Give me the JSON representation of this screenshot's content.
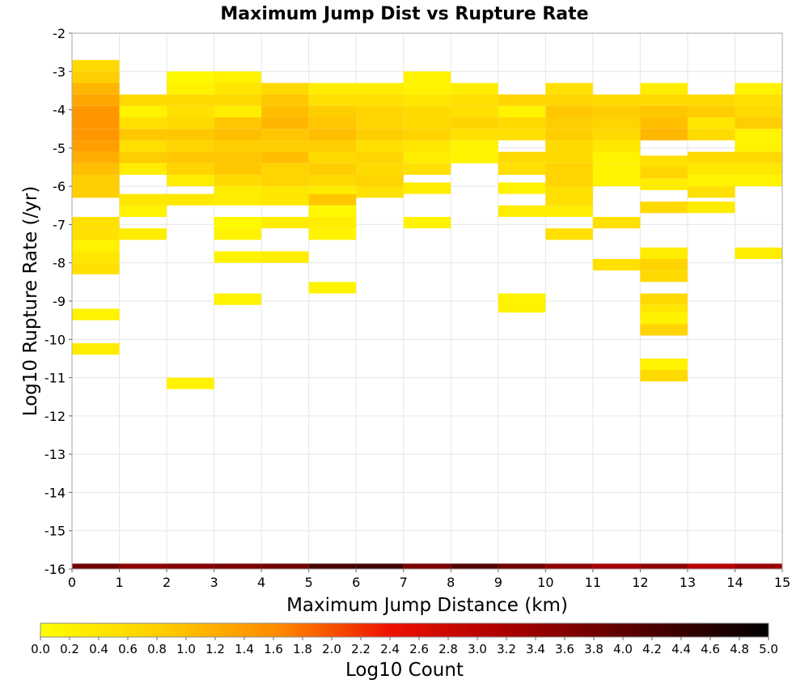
{
  "chart_data": {
    "type": "heatmap",
    "title": "Maximum Jump Dist vs Rupture Rate",
    "xlabel": "Maximum Jump Distance (km)",
    "ylabel": "Log10 Rupture Rate (/yr)",
    "xlim": [
      0,
      15
    ],
    "ylim": [
      -16,
      -2
    ],
    "x_ticks": [
      "0",
      "1",
      "2",
      "3",
      "4",
      "5",
      "6",
      "7",
      "8",
      "9",
      "10",
      "11",
      "12",
      "13",
      "14",
      "15"
    ],
    "y_ticks": [
      "-2",
      "-3",
      "-4",
      "-5",
      "-6",
      "-7",
      "-8",
      "-9",
      "-10",
      "-11",
      "-12",
      "-13",
      "-14",
      "-15",
      "-16"
    ],
    "x_bin_width": 1,
    "y_bin_height": 0.3,
    "grid": true,
    "colorbar": {
      "label": "Log10 Count",
      "range": [
        0,
        5
      ],
      "ticks": [
        "0.0",
        "0.2",
        "0.4",
        "0.6",
        "0.8",
        "1.0",
        "1.2",
        "1.4",
        "1.6",
        "1.8",
        "2.0",
        "2.2",
        "2.4",
        "2.6",
        "2.8",
        "3.0",
        "3.2",
        "3.4",
        "3.6",
        "3.8",
        "4.0",
        "4.2",
        "4.4",
        "4.6",
        "4.8",
        "5.0"
      ],
      "colors": [
        "#ffff00",
        "#ffcc00",
        "#ff8800",
        "#ee1100",
        "#aa0000",
        "#550000",
        "#000000"
      ]
    },
    "cells": [
      [
        0,
        -2.85,
        0.6
      ],
      [
        0,
        -3.15,
        0.8
      ],
      [
        0,
        -3.45,
        1.1
      ],
      [
        0,
        -3.75,
        1.3
      ],
      [
        0,
        -4.05,
        1.5
      ],
      [
        0,
        -4.35,
        1.5
      ],
      [
        0,
        -4.65,
        1.5
      ],
      [
        0,
        -4.95,
        1.4
      ],
      [
        0,
        -5.25,
        1.2
      ],
      [
        0,
        -5.55,
        1.0
      ],
      [
        0,
        -5.85,
        0.8
      ],
      [
        0,
        -6.15,
        0.8
      ],
      [
        0,
        -6.95,
        0.5
      ],
      [
        0,
        -7.25,
        0.5
      ],
      [
        0,
        -7.55,
        0.2
      ],
      [
        0,
        -7.85,
        0.4
      ],
      [
        0,
        -8.15,
        0.5
      ],
      [
        0,
        -9.35,
        0.2
      ],
      [
        0,
        -10.25,
        0.3
      ],
      [
        1,
        -3.75,
        0.6
      ],
      [
        1,
        -4.05,
        0.2
      ],
      [
        1,
        -4.35,
        0.5
      ],
      [
        1,
        -4.65,
        0.9
      ],
      [
        1,
        -4.95,
        0.5
      ],
      [
        1,
        -5.25,
        0.8
      ],
      [
        1,
        -5.55,
        0.3
      ],
      [
        1,
        -6.35,
        0.4
      ],
      [
        1,
        -6.65,
        0.2
      ],
      [
        1,
        -7.25,
        0.3
      ],
      [
        2,
        -3.15,
        0.1
      ],
      [
        2,
        -3.45,
        0.2
      ],
      [
        2,
        -3.75,
        0.6
      ],
      [
        2,
        -4.05,
        0.5
      ],
      [
        2,
        -4.35,
        0.6
      ],
      [
        2,
        -4.65,
        0.9
      ],
      [
        2,
        -4.95,
        0.7
      ],
      [
        2,
        -5.25,
        0.9
      ],
      [
        2,
        -5.55,
        0.7
      ],
      [
        2,
        -5.85,
        0.3
      ],
      [
        2,
        -6.35,
        0.4
      ],
      [
        2,
        -11.15,
        0.2
      ],
      [
        3,
        -3.15,
        0.2
      ],
      [
        3,
        -3.45,
        0.4
      ],
      [
        3,
        -3.75,
        0.6
      ],
      [
        3,
        -4.05,
        0.3
      ],
      [
        3,
        -4.35,
        0.9
      ],
      [
        3,
        -4.65,
        1.0
      ],
      [
        3,
        -4.95,
        0.8
      ],
      [
        3,
        -5.25,
        0.9
      ],
      [
        3,
        -5.55,
        0.9
      ],
      [
        3,
        -5.85,
        0.6
      ],
      [
        3,
        -6.15,
        0.3
      ],
      [
        3,
        -6.35,
        0.3
      ],
      [
        3,
        -6.95,
        0.1
      ],
      [
        3,
        -7.25,
        0.2
      ],
      [
        3,
        -7.85,
        0.2
      ],
      [
        3,
        -8.95,
        0.2
      ],
      [
        4,
        -3.45,
        0.6
      ],
      [
        4,
        -3.75,
        0.9
      ],
      [
        4,
        -4.05,
        1.0
      ],
      [
        4,
        -4.35,
        1.1
      ],
      [
        4,
        -4.65,
        0.9
      ],
      [
        4,
        -4.95,
        0.8
      ],
      [
        4,
        -5.25,
        1.0
      ],
      [
        4,
        -5.55,
        0.7
      ],
      [
        4,
        -5.85,
        0.7
      ],
      [
        4,
        -6.15,
        0.4
      ],
      [
        4,
        -6.35,
        0.4
      ],
      [
        4,
        -6.95,
        0.3
      ],
      [
        4,
        -7.85,
        0.3
      ],
      [
        5,
        -3.45,
        0.3
      ],
      [
        5,
        -3.75,
        0.5
      ],
      [
        5,
        -4.05,
        0.8
      ],
      [
        5,
        -4.35,
        0.9
      ],
      [
        5,
        -4.65,
        1.0
      ],
      [
        5,
        -4.95,
        0.8
      ],
      [
        5,
        -5.25,
        0.6
      ],
      [
        5,
        -5.55,
        0.8
      ],
      [
        5,
        -5.85,
        0.6
      ],
      [
        5,
        -6.15,
        0.3
      ],
      [
        5,
        -6.35,
        0.9
      ],
      [
        5,
        -6.65,
        0.1
      ],
      [
        5,
        -6.95,
        0.3
      ],
      [
        5,
        -7.25,
        0.2
      ],
      [
        5,
        -8.65,
        0.2
      ],
      [
        6,
        -3.45,
        0.3
      ],
      [
        6,
        -3.75,
        0.5
      ],
      [
        6,
        -4.05,
        0.7
      ],
      [
        6,
        -4.35,
        0.7
      ],
      [
        6,
        -4.65,
        0.8
      ],
      [
        6,
        -4.95,
        0.5
      ],
      [
        6,
        -5.25,
        0.7
      ],
      [
        6,
        -5.55,
        0.6
      ],
      [
        6,
        -5.85,
        0.7
      ],
      [
        6,
        -6.15,
        0.5
      ],
      [
        7,
        -3.15,
        0.2
      ],
      [
        7,
        -3.45,
        0.2
      ],
      [
        7,
        -3.75,
        0.4
      ],
      [
        7,
        -4.05,
        0.6
      ],
      [
        7,
        -4.35,
        0.6
      ],
      [
        7,
        -4.65,
        0.7
      ],
      [
        7,
        -4.95,
        0.4
      ],
      [
        7,
        -5.25,
        0.3
      ],
      [
        7,
        -5.55,
        0.5
      ],
      [
        7,
        -6.05,
        0.3
      ],
      [
        7,
        -6.95,
        0.2
      ],
      [
        8,
        -3.45,
        0.3
      ],
      [
        8,
        -3.75,
        0.5
      ],
      [
        8,
        -4.05,
        0.5
      ],
      [
        8,
        -4.35,
        0.7
      ],
      [
        8,
        -4.65,
        0.5
      ],
      [
        8,
        -4.95,
        0.2
      ],
      [
        8,
        -5.25,
        0.2
      ],
      [
        9,
        -3.75,
        0.7
      ],
      [
        9,
        -4.05,
        0.2
      ],
      [
        9,
        -4.35,
        0.6
      ],
      [
        9,
        -4.65,
        0.5
      ],
      [
        9,
        -5.25,
        0.6
      ],
      [
        9,
        -5.55,
        0.5
      ],
      [
        9,
        -6.05,
        0.2
      ],
      [
        9,
        -6.65,
        0.3
      ],
      [
        9,
        -8.95,
        0.2
      ],
      [
        9,
        -9.15,
        0.2
      ],
      [
        10,
        -3.45,
        0.5
      ],
      [
        10,
        -3.75,
        0.7
      ],
      [
        10,
        -4.05,
        0.9
      ],
      [
        10,
        -4.35,
        0.8
      ],
      [
        10,
        -4.65,
        0.8
      ],
      [
        10,
        -4.95,
        0.6
      ],
      [
        10,
        -5.25,
        0.6
      ],
      [
        10,
        -5.55,
        0.7
      ],
      [
        10,
        -5.85,
        0.7
      ],
      [
        10,
        -6.15,
        0.5
      ],
      [
        10,
        -6.35,
        0.5
      ],
      [
        10,
        -6.65,
        0.3
      ],
      [
        10,
        -7.25,
        0.5
      ],
      [
        11,
        -3.75,
        0.6
      ],
      [
        11,
        -4.05,
        0.8
      ],
      [
        11,
        -4.35,
        0.7
      ],
      [
        11,
        -4.65,
        0.6
      ],
      [
        11,
        -4.95,
        0.4
      ],
      [
        11,
        -5.25,
        0.2
      ],
      [
        11,
        -5.55,
        0.2
      ],
      [
        11,
        -5.85,
        0.2
      ],
      [
        11,
        -6.95,
        0.5
      ],
      [
        11,
        -8.05,
        0.5
      ],
      [
        12,
        -3.45,
        0.3
      ],
      [
        12,
        -3.75,
        0.6
      ],
      [
        12,
        -4.05,
        0.9
      ],
      [
        12,
        -4.35,
        1.0
      ],
      [
        12,
        -4.65,
        1.1
      ],
      [
        12,
        -5.35,
        0.5
      ],
      [
        12,
        -5.65,
        0.7
      ],
      [
        12,
        -5.95,
        0.3
      ],
      [
        12,
        -6.55,
        0.6
      ],
      [
        12,
        -7.75,
        0.3
      ],
      [
        12,
        -8.05,
        0.7
      ],
      [
        12,
        -8.35,
        0.6
      ],
      [
        12,
        -8.95,
        0.6
      ],
      [
        12,
        -9.25,
        0.4
      ],
      [
        12,
        -9.45,
        0.2
      ],
      [
        12,
        -9.75,
        0.7
      ],
      [
        12,
        -10.65,
        0.2
      ],
      [
        12,
        -10.95,
        0.6
      ],
      [
        13,
        -3.75,
        0.6
      ],
      [
        13,
        -4.05,
        0.8
      ],
      [
        13,
        -4.35,
        0.4
      ],
      [
        13,
        -4.65,
        0.6
      ],
      [
        13,
        -5.25,
        0.6
      ],
      [
        13,
        -5.55,
        0.4
      ],
      [
        13,
        -5.85,
        0.2
      ],
      [
        13,
        -6.15,
        0.5
      ],
      [
        13,
        -6.55,
        0.3
      ],
      [
        14,
        -3.45,
        0.2
      ],
      [
        14,
        -3.75,
        0.5
      ],
      [
        14,
        -4.05,
        0.6
      ],
      [
        14,
        -4.35,
        0.8
      ],
      [
        14,
        -4.65,
        0.2
      ],
      [
        14,
        -4.95,
        0.2
      ],
      [
        14,
        -5.25,
        0.6
      ],
      [
        14,
        -5.55,
        0.4
      ],
      [
        14,
        -5.85,
        0.2
      ],
      [
        14,
        -7.75,
        0.3
      ]
    ],
    "bottom_row": {
      "y": -15.95,
      "values": [
        3.9,
        3.6,
        3.7,
        3.8,
        3.9,
        4.3,
        4.4,
        3.8,
        4.2,
        3.9,
        3.6,
        3.4,
        3.6,
        3.2,
        3.5
      ]
    }
  }
}
